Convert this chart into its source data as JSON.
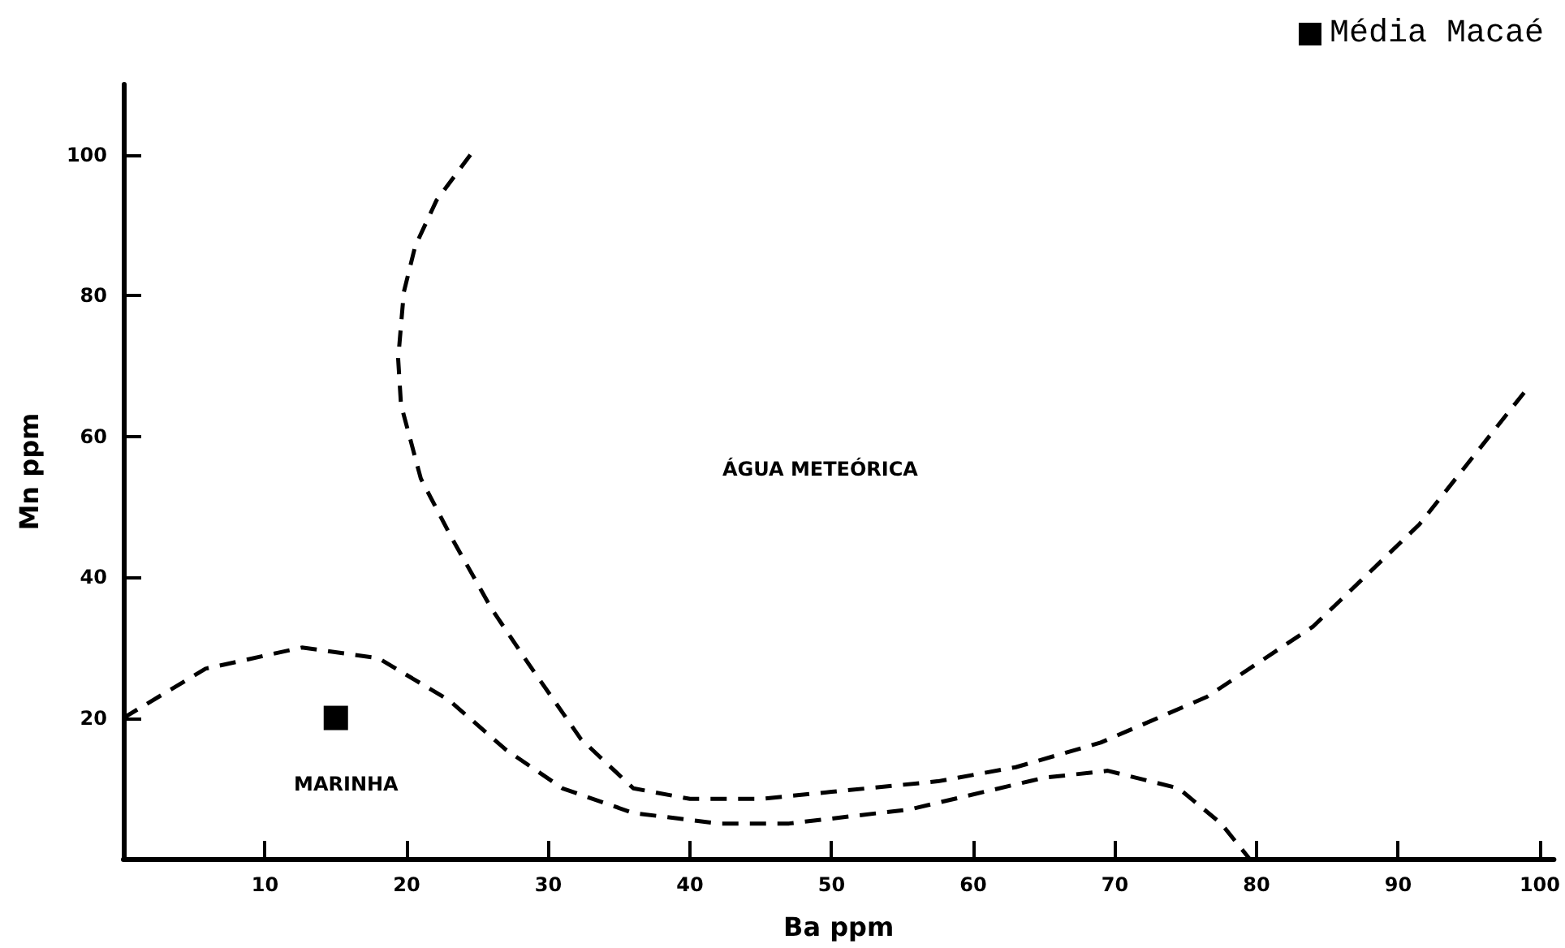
{
  "chart_data": {
    "type": "scatter",
    "xlabel": "Ba ppm",
    "ylabel": "Mn ppm",
    "xlim": [
      0,
      101
    ],
    "ylim": [
      0,
      110
    ],
    "xticks": [
      10,
      20,
      30,
      40,
      50,
      60,
      70,
      80,
      90,
      100
    ],
    "yticks": [
      20,
      40,
      60,
      80,
      100
    ],
    "grid": false,
    "legend": "top right",
    "annotations": [
      "ÁGUA METEÓRICA",
      "MARINHA"
    ],
    "series": [
      {
        "name": "Média Macaé",
        "type": "scatter",
        "color": "#000000",
        "marker": "square",
        "x": [
          15
        ],
        "values": [
          20
        ]
      },
      {
        "type": "line",
        "color": "#000000",
        "line_style": "dashed",
        "marker": "none",
        "x": [
          24.5,
          22.1,
          20.6,
          19.8,
          19.4,
          19.6,
          21,
          23.2,
          26,
          28.5,
          32.3,
          36,
          40,
          45,
          50,
          57.5,
          63,
          69,
          76.5,
          84,
          91.5,
          99
        ],
        "values": [
          100,
          93.5,
          87,
          80.5,
          71,
          64.5,
          54,
          45.5,
          35.5,
          28,
          17,
          10,
          8.5,
          8.5,
          9.5,
          11,
          13,
          16.5,
          23,
          33,
          47.5,
          66.5
        ]
      },
      {
        "type": "line",
        "color": "#000000",
        "line_style": "dashed",
        "marker": "none",
        "x": [
          0,
          5.8,
          12.6,
          18,
          23,
          27,
          31,
          36,
          42,
          47,
          55.5,
          65,
          69.5,
          74.5,
          77.5,
          79.5
        ],
        "values": [
          20,
          27,
          30,
          28.5,
          22.5,
          15.5,
          10,
          6.5,
          5,
          5,
          7,
          11.5,
          12.5,
          10,
          5,
          0
        ]
      }
    ]
  }
}
